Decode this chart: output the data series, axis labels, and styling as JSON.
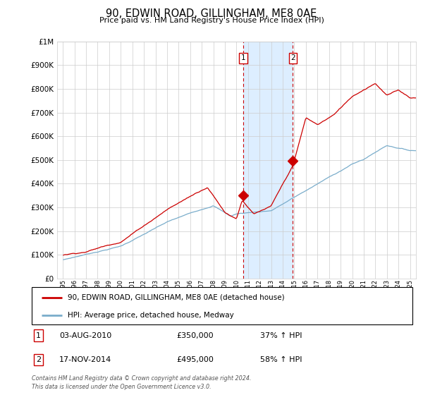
{
  "title": "90, EDWIN ROAD, GILLINGHAM, ME8 0AE",
  "subtitle": "Price paid vs. HM Land Registry's House Price Index (HPI)",
  "legend_label_red": "90, EDWIN ROAD, GILLINGHAM, ME8 0AE (detached house)",
  "legend_label_blue": "HPI: Average price, detached house, Medway",
  "footer": "Contains HM Land Registry data © Crown copyright and database right 2024.\nThis data is licensed under the Open Government Licence v3.0.",
  "transactions": [
    {
      "label": "1",
      "date": "03-AUG-2010",
      "price": "£350,000",
      "change": "37% ↑ HPI",
      "year": 2010.58,
      "value": 350000
    },
    {
      "label": "2",
      "date": "17-NOV-2014",
      "price": "£495,000",
      "change": "58% ↑ HPI",
      "year": 2014.88,
      "value": 495000
    }
  ],
  "red_line_color": "#cc0000",
  "blue_line_color": "#7aadcb",
  "shaded_region_color": "#ddeeff",
  "vline_color": "#cc0000",
  "grid_color": "#cccccc",
  "background_color": "#ffffff",
  "ylim": [
    0,
    1000000
  ],
  "yticks": [
    0,
    100000,
    200000,
    300000,
    400000,
    500000,
    600000,
    700000,
    800000,
    900000,
    1000000
  ],
  "xlim_start": 1994.5,
  "xlim_end": 2025.5
}
